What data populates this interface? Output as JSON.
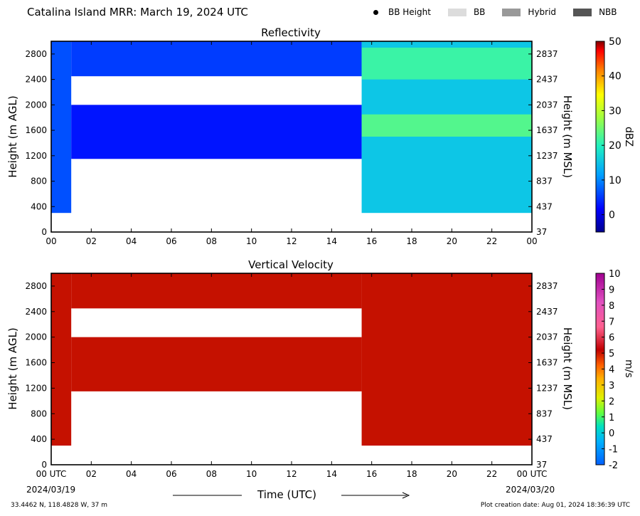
{
  "header": {
    "title": "Catalina Island MRR:  March 19, 2024 UTC",
    "legend": [
      {
        "label": "BB Height",
        "kind": "dot",
        "color": "#000000"
      },
      {
        "label": "BB",
        "kind": "swatch",
        "color": "#dcdcdc"
      },
      {
        "label": "Hybrid",
        "kind": "swatch",
        "color": "#999999"
      },
      {
        "label": "NBB",
        "kind": "swatch",
        "color": "#555555"
      }
    ]
  },
  "chart_data": [
    {
      "type": "heatmap",
      "title": "Reflectivity",
      "ylabel": "Height (m AGL)",
      "ylabel_right": "Height (m MSL)",
      "xticks": [
        "00",
        "02",
        "04",
        "06",
        "08",
        "10",
        "12",
        "14",
        "16",
        "18",
        "20",
        "22",
        "00"
      ],
      "yticks_left": [
        "0",
        "400",
        "800",
        "1200",
        "1600",
        "2000",
        "2400",
        "2800"
      ],
      "yticks_right": [
        "37",
        "437",
        "837",
        "1237",
        "1637",
        "2037",
        "2437",
        "2837"
      ],
      "xlim": [
        0,
        24
      ],
      "ylim": [
        0,
        3000
      ],
      "colorbar": {
        "label": "dBZ",
        "ticks": [
          "0",
          "10",
          "20",
          "30",
          "40",
          "50"
        ],
        "range": [
          -5,
          50
        ]
      },
      "regions": [
        {
          "name": "early-column",
          "t_start": 0,
          "t_end": 1.0,
          "h_bottom": 300,
          "h_top": 3000,
          "dbz": 4
        },
        {
          "name": "upper-band",
          "t_start": 1.0,
          "t_end": 15.5,
          "h_bottom": 2450,
          "h_top": 3000,
          "dbz": 3
        },
        {
          "name": "middle-band",
          "t_start": 1.0,
          "t_end": 15.5,
          "h_bottom": 1150,
          "h_top": 2000,
          "dbz": 1
        },
        {
          "name": "late-echo",
          "t_start": 15.5,
          "t_end": 24,
          "h_bottom": 300,
          "h_top": 3000,
          "dbz": 12
        },
        {
          "name": "late-bright-layer-1",
          "t_start": 15.5,
          "t_end": 24,
          "h_bottom": 1500,
          "h_top": 1850,
          "dbz": 17
        },
        {
          "name": "late-bright-layer-2",
          "t_start": 15.5,
          "t_end": 24,
          "h_bottom": 2400,
          "h_top": 2900,
          "dbz": 16
        }
      ]
    },
    {
      "type": "heatmap",
      "title": "Vertical Velocity",
      "xlabel": "Time (UTC)",
      "ylabel": "Height (m AGL)",
      "ylabel_right": "Height (m MSL)",
      "xticks": [
        "00 UTC",
        "02",
        "04",
        "06",
        "08",
        "10",
        "12",
        "14",
        "16",
        "18",
        "20",
        "22",
        "00 UTC"
      ],
      "yticks_left": [
        "0",
        "400",
        "800",
        "1200",
        "1600",
        "2000",
        "2400",
        "2800"
      ],
      "yticks_right": [
        "37",
        "437",
        "837",
        "1237",
        "1637",
        "2037",
        "2437",
        "2837"
      ],
      "xlim": [
        0,
        24
      ],
      "ylim": [
        0,
        3000
      ],
      "colorbar": {
        "label": "m/s",
        "ticks": [
          "-2",
          "-1",
          "0",
          "1",
          "2",
          "3",
          "4",
          "5",
          "6",
          "7",
          "8",
          "9",
          "10"
        ],
        "range": [
          -2,
          10
        ]
      },
      "regions": [
        {
          "name": "early-column",
          "t_start": 0,
          "t_end": 1.0,
          "h_bottom": 300,
          "h_top": 3000,
          "ms": 6
        },
        {
          "name": "upper-band",
          "t_start": 1.0,
          "t_end": 15.5,
          "h_bottom": 2450,
          "h_top": 3000,
          "ms": 6
        },
        {
          "name": "middle-band",
          "t_start": 1.0,
          "t_end": 15.5,
          "h_bottom": 1150,
          "h_top": 2000,
          "ms": 6
        },
        {
          "name": "late-echo",
          "t_start": 15.5,
          "t_end": 24,
          "h_bottom": 300,
          "h_top": 3000,
          "ms": 6
        }
      ]
    }
  ],
  "dates": {
    "start": "2024/03/19",
    "end": "2024/03/20"
  },
  "footer": {
    "location": "33.4462 N, 118.4828 W, 37 m",
    "created": "Plot creation date: Aug 01, 2024 18:36:39 UTC"
  }
}
